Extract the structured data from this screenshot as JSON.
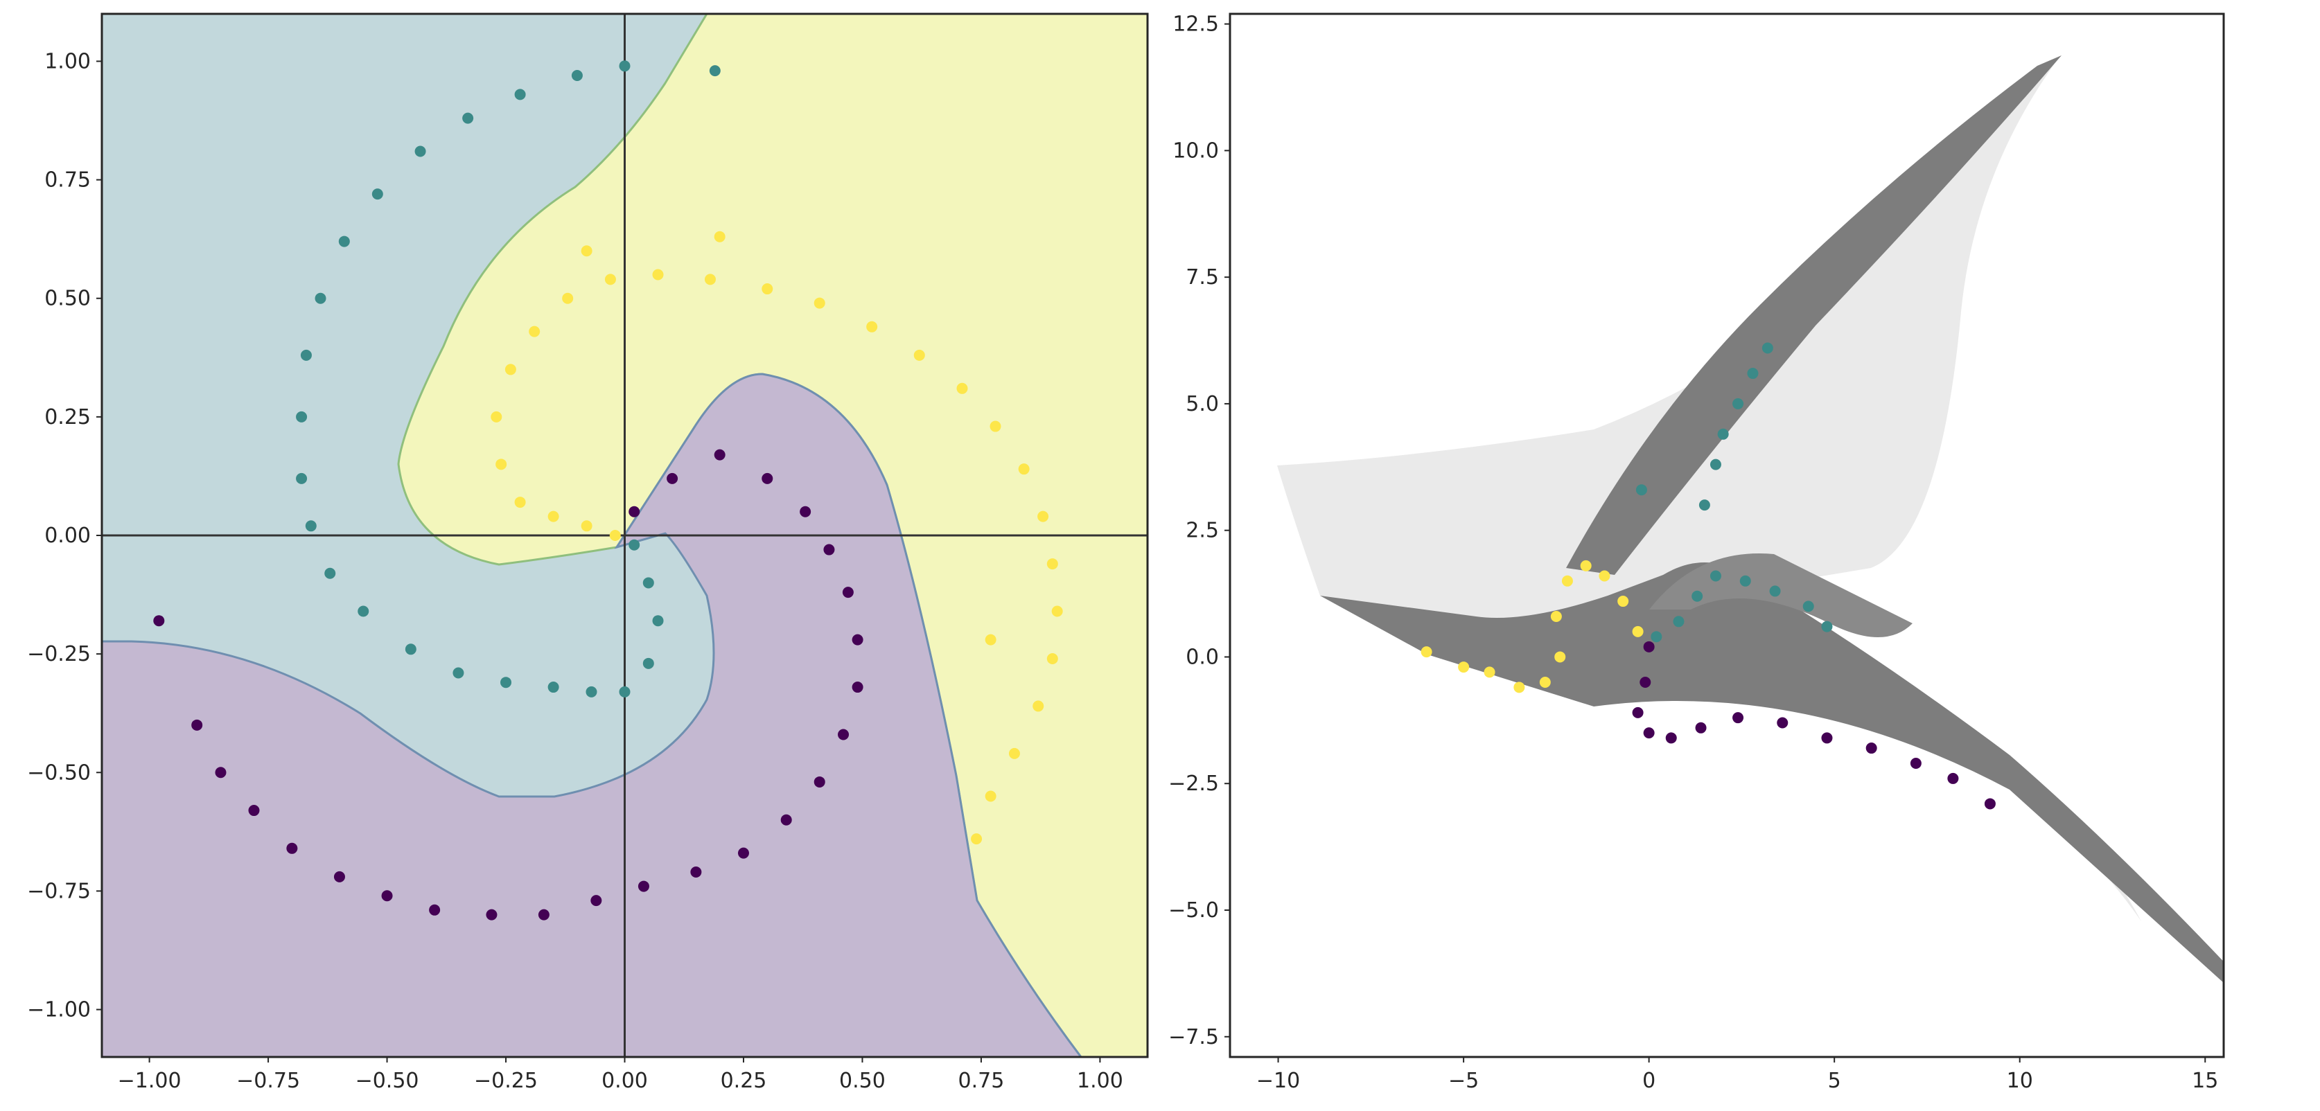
{
  "chart_data": [
    {
      "type": "scatter",
      "title": "",
      "xlabel": "",
      "ylabel": "",
      "xlim": [
        -1.1,
        1.1
      ],
      "ylim": [
        -1.1,
        1.1
      ],
      "grid": false,
      "legend": "none",
      "reference_lines": {
        "x": 0,
        "y": 0
      },
      "background": "decision regions (filled contour) for 3 classes",
      "xticks": [
        -1.0,
        -0.75,
        -0.5,
        -0.25,
        0.0,
        0.25,
        0.5,
        0.75,
        1.0
      ],
      "yticks": [
        -1.0,
        -0.75,
        -0.5,
        -0.25,
        0.0,
        0.25,
        0.5,
        0.75,
        1.0
      ],
      "xtick_labels": [
        "−1.00",
        "−0.75",
        "−0.50",
        "−0.25",
        "0.00",
        "0.25",
        "0.50",
        "0.75",
        "1.00"
      ],
      "ytick_labels": [
        "−1.00",
        "−0.75",
        "−0.50",
        "−0.25",
        "0.00",
        "0.25",
        "0.50",
        "0.75",
        "1.00"
      ],
      "classes": [
        {
          "id": 0,
          "color": "#440154",
          "region_color": "#c4b8d1"
        },
        {
          "id": 1,
          "color": "#3b8a88",
          "region_color": "#c2d8dc"
        },
        {
          "id": 2,
          "color": "#fde64a",
          "region_color": "#f3f6bc"
        }
      ],
      "series": [
        {
          "class": 0,
          "points": [
            [
              0.02,
              0.05
            ],
            [
              0.1,
              0.12
            ],
            [
              0.2,
              0.17
            ],
            [
              0.3,
              0.12
            ],
            [
              0.38,
              0.05
            ],
            [
              0.43,
              -0.03
            ],
            [
              0.47,
              -0.12
            ],
            [
              0.49,
              -0.22
            ],
            [
              0.49,
              -0.32
            ],
            [
              0.46,
              -0.42
            ],
            [
              0.41,
              -0.52
            ],
            [
              0.34,
              -0.6
            ],
            [
              0.25,
              -0.67
            ],
            [
              0.15,
              -0.71
            ],
            [
              0.04,
              -0.74
            ],
            [
              -0.06,
              -0.77
            ],
            [
              -0.17,
              -0.8
            ],
            [
              -0.28,
              -0.8
            ],
            [
              -0.4,
              -0.79
            ],
            [
              -0.5,
              -0.76
            ],
            [
              -0.6,
              -0.72
            ],
            [
              -0.7,
              -0.66
            ],
            [
              -0.78,
              -0.58
            ],
            [
              -0.85,
              -0.5
            ],
            [
              -0.9,
              -0.4
            ],
            [
              -0.98,
              -0.18
            ]
          ]
        },
        {
          "class": 1,
          "points": [
            [
              0.02,
              -0.02
            ],
            [
              0.05,
              -0.1
            ],
            [
              0.07,
              -0.18
            ],
            [
              0.05,
              -0.27
            ],
            [
              0.0,
              -0.33
            ],
            [
              -0.07,
              -0.33
            ],
            [
              -0.15,
              -0.32
            ],
            [
              -0.25,
              -0.31
            ],
            [
              -0.35,
              -0.29
            ],
            [
              -0.45,
              -0.24
            ],
            [
              -0.55,
              -0.16
            ],
            [
              -0.62,
              -0.08
            ],
            [
              -0.66,
              0.02
            ],
            [
              -0.68,
              0.12
            ],
            [
              -0.68,
              0.25
            ],
            [
              -0.67,
              0.38
            ],
            [
              -0.64,
              0.5
            ],
            [
              -0.59,
              0.62
            ],
            [
              -0.52,
              0.72
            ],
            [
              -0.43,
              0.81
            ],
            [
              -0.33,
              0.88
            ],
            [
              -0.22,
              0.93
            ],
            [
              -0.1,
              0.97
            ],
            [
              0.0,
              0.99
            ],
            [
              0.19,
              0.98
            ]
          ]
        },
        {
          "class": 2,
          "points": [
            [
              -0.02,
              0.0
            ],
            [
              -0.08,
              0.02
            ],
            [
              -0.15,
              0.04
            ],
            [
              -0.22,
              0.07
            ],
            [
              -0.26,
              0.15
            ],
            [
              -0.27,
              0.25
            ],
            [
              -0.24,
              0.35
            ],
            [
              -0.19,
              0.43
            ],
            [
              -0.12,
              0.5
            ],
            [
              -0.03,
              0.54
            ],
            [
              0.07,
              0.55
            ],
            [
              0.18,
              0.54
            ],
            [
              0.3,
              0.52
            ],
            [
              0.41,
              0.49
            ],
            [
              0.52,
              0.44
            ],
            [
              0.62,
              0.38
            ],
            [
              0.71,
              0.31
            ],
            [
              0.78,
              0.23
            ],
            [
              0.84,
              0.14
            ],
            [
              0.88,
              0.04
            ],
            [
              0.9,
              -0.06
            ],
            [
              0.91,
              -0.16
            ],
            [
              0.9,
              -0.26
            ],
            [
              0.87,
              -0.36
            ],
            [
              0.82,
              -0.46
            ],
            [
              0.77,
              -0.55
            ],
            [
              0.74,
              -0.64
            ],
            [
              0.77,
              -0.22
            ],
            [
              -0.08,
              0.6
            ],
            [
              0.2,
              0.63
            ]
          ]
        }
      ]
    },
    {
      "type": "scatter",
      "title": "",
      "xlabel": "",
      "ylabel": "",
      "xlim": [
        -11.3,
        15.5
      ],
      "ylim": [
        -7.9,
        12.7
      ],
      "grid": false,
      "legend": "none",
      "background": "grey transformed-grid surface",
      "xticks": [
        -10,
        -5,
        0,
        5,
        10,
        15
      ],
      "yticks": [
        -7.5,
        -5.0,
        -2.5,
        0.0,
        2.5,
        5.0,
        7.5,
        10.0,
        12.5
      ],
      "xtick_labels": [
        "−10",
        "−5",
        "0",
        "5",
        "10",
        "15"
      ],
      "ytick_labels": [
        "−7.5",
        "−5.0",
        "−2.5",
        "0.0",
        "2.5",
        "5.0",
        "7.5",
        "10.0",
        "12.5"
      ],
      "classes": [
        {
          "id": 0,
          "color": "#440154"
        },
        {
          "id": 1,
          "color": "#3b8a88"
        },
        {
          "id": 2,
          "color": "#fde64a"
        }
      ],
      "series": [
        {
          "class": 0,
          "points": [
            [
              0.0,
              0.2
            ],
            [
              -0.1,
              -0.5
            ],
            [
              -0.3,
              -1.1
            ],
            [
              0.0,
              -1.5
            ],
            [
              0.6,
              -1.6
            ],
            [
              1.4,
              -1.4
            ],
            [
              2.4,
              -1.2
            ],
            [
              3.6,
              -1.3
            ],
            [
              4.8,
              -1.6
            ],
            [
              6.0,
              -1.8
            ],
            [
              7.2,
              -2.1
            ],
            [
              8.2,
              -2.4
            ],
            [
              9.2,
              -2.9
            ]
          ]
        },
        {
          "class": 1,
          "points": [
            [
              0.2,
              0.4
            ],
            [
              0.8,
              0.7
            ],
            [
              1.3,
              1.2
            ],
            [
              1.8,
              1.6
            ],
            [
              2.6,
              1.5
            ],
            [
              3.4,
              1.3
            ],
            [
              4.3,
              1.0
            ],
            [
              4.8,
              0.6
            ],
            [
              1.5,
              3.0
            ],
            [
              1.8,
              3.8
            ],
            [
              2.0,
              4.4
            ],
            [
              2.4,
              5.0
            ],
            [
              2.8,
              5.6
            ],
            [
              3.2,
              6.1
            ],
            [
              -0.2,
              3.3
            ]
          ]
        },
        {
          "class": 2,
          "points": [
            [
              -0.3,
              0.5
            ],
            [
              -0.7,
              1.1
            ],
            [
              -1.2,
              1.6
            ],
            [
              -1.7,
              1.8
            ],
            [
              -2.2,
              1.5
            ],
            [
              -2.5,
              0.8
            ],
            [
              -2.4,
              0.0
            ],
            [
              -2.8,
              -0.5
            ],
            [
              -3.5,
              -0.6
            ],
            [
              -4.3,
              -0.3
            ],
            [
              -5.0,
              -0.2
            ],
            [
              -6.0,
              0.1
            ]
          ]
        }
      ]
    }
  ]
}
